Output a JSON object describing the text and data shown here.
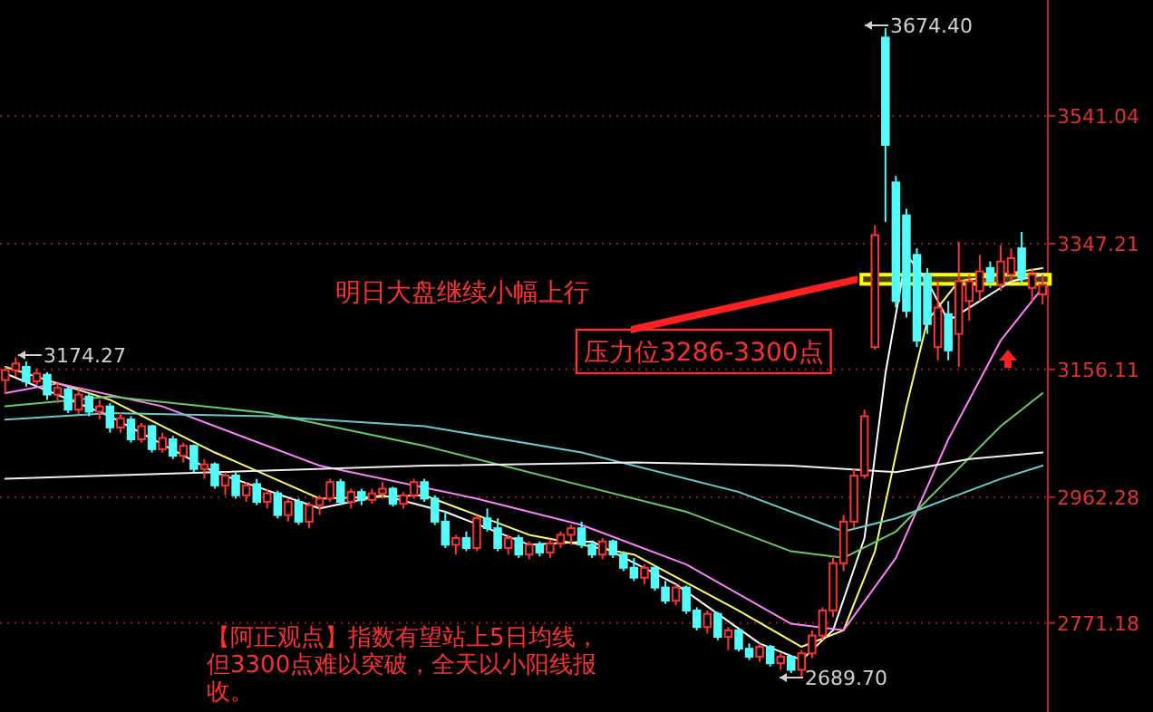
{
  "chart_data": {
    "type": "candlestick",
    "categories": [
      null,
      null,
      null,
      null,
      null,
      null,
      null,
      null,
      null,
      null,
      null,
      null,
      null,
      null,
      null,
      null,
      null,
      null,
      null,
      null,
      null,
      null,
      null,
      null,
      null,
      null,
      null,
      null,
      null,
      null,
      null,
      null,
      null,
      null,
      null,
      null,
      null,
      null,
      null,
      null,
      null,
      null,
      null,
      null,
      null,
      null,
      null,
      null,
      null,
      null,
      null,
      null,
      null,
      null,
      null,
      null,
      null,
      null,
      null,
      null,
      null,
      null,
      null,
      null,
      null,
      null,
      null,
      null,
      null,
      null,
      null,
      null,
      null,
      null,
      null,
      null,
      null,
      null,
      null,
      null,
      null,
      null,
      null,
      null,
      null,
      null,
      null,
      null,
      null,
      null,
      null,
      null,
      null,
      null,
      null,
      null,
      null,
      null,
      null,
      null
    ],
    "ohlc": [
      [
        3140,
        3160,
        3120,
        3155
      ],
      [
        3155,
        3174.27,
        3145,
        3165
      ],
      [
        3160,
        3168,
        3130,
        3138
      ],
      [
        3138,
        3158,
        3132,
        3150
      ],
      [
        3148,
        3152,
        3110,
        3118
      ],
      [
        3118,
        3135,
        3105,
        3128
      ],
      [
        3126,
        3130,
        3090,
        3095
      ],
      [
        3095,
        3125,
        3088,
        3118
      ],
      [
        3115,
        3120,
        3085,
        3092
      ],
      [
        3092,
        3110,
        3080,
        3100
      ],
      [
        3100,
        3105,
        3060,
        3068
      ],
      [
        3068,
        3090,
        3060,
        3082
      ],
      [
        3080,
        3085,
        3045,
        3050
      ],
      [
        3050,
        3075,
        3045,
        3070
      ],
      [
        3070,
        3072,
        3030,
        3035
      ],
      [
        3035,
        3060,
        3030,
        3052
      ],
      [
        3050,
        3055,
        3020,
        3025
      ],
      [
        3025,
        3045,
        3015,
        3040
      ],
      [
        3040,
        3042,
        3000,
        3005
      ],
      [
        3005,
        3020,
        2990,
        3012
      ],
      [
        3012,
        3015,
        2975,
        2980
      ],
      [
        2980,
        3000,
        2965,
        2995
      ],
      [
        2995,
        3000,
        2960,
        2965
      ],
      [
        2965,
        2985,
        2955,
        2980
      ],
      [
        2982,
        2990,
        2950,
        2955
      ],
      [
        2955,
        2975,
        2945,
        2968
      ],
      [
        2968,
        2972,
        2930,
        2935
      ],
      [
        2935,
        2960,
        2925,
        2955
      ],
      [
        2955,
        2960,
        2920,
        2925
      ],
      [
        2925,
        2955,
        2915,
        2950
      ],
      [
        2950,
        2965,
        2935,
        2960
      ],
      [
        2960,
        2990,
        2955,
        2985
      ],
      [
        2985,
        2990,
        2950,
        2955
      ],
      [
        2955,
        2975,
        2945,
        2970
      ],
      [
        2970,
        2975,
        2950,
        2958
      ],
      [
        2958,
        2975,
        2952,
        2968
      ],
      [
        2968,
        2985,
        2960,
        2975
      ],
      [
        2975,
        2978,
        2948,
        2952
      ],
      [
        2952,
        2970,
        2945,
        2965
      ],
      [
        2965,
        2990,
        2960,
        2985
      ],
      [
        2985,
        2990,
        2955,
        2960
      ],
      [
        2960,
        2965,
        2920,
        2925
      ],
      [
        2925,
        2940,
        2885,
        2890
      ],
      [
        2890,
        2905,
        2875,
        2900
      ],
      [
        2900,
        2910,
        2880,
        2885
      ],
      [
        2885,
        2935,
        2880,
        2930
      ],
      [
        2930,
        2945,
        2910,
        2915
      ],
      [
        2915,
        2930,
        2880,
        2885
      ],
      [
        2885,
        2905,
        2875,
        2900
      ],
      [
        2900,
        2905,
        2870,
        2875
      ],
      [
        2875,
        2895,
        2868,
        2890
      ],
      [
        2890,
        2895,
        2872,
        2878
      ],
      [
        2878,
        2898,
        2870,
        2892
      ],
      [
        2892,
        2910,
        2885,
        2905
      ],
      [
        2905,
        2920,
        2890,
        2915
      ],
      [
        2915,
        2925,
        2885,
        2890
      ],
      [
        2890,
        2895,
        2870,
        2875
      ],
      [
        2875,
        2900,
        2868,
        2895
      ],
      [
        2895,
        2898,
        2870,
        2875
      ],
      [
        2875,
        2880,
        2850,
        2855
      ],
      [
        2855,
        2870,
        2835,
        2840
      ],
      [
        2840,
        2860,
        2830,
        2855
      ],
      [
        2855,
        2858,
        2820,
        2825
      ],
      [
        2825,
        2835,
        2800,
        2805
      ],
      [
        2805,
        2830,
        2798,
        2825
      ],
      [
        2825,
        2828,
        2785,
        2790
      ],
      [
        2790,
        2795,
        2760,
        2765
      ],
      [
        2765,
        2790,
        2755,
        2785
      ],
      [
        2785,
        2788,
        2745,
        2750
      ],
      [
        2750,
        2765,
        2730,
        2760
      ],
      [
        2760,
        2762,
        2728,
        2732
      ],
      [
        2732,
        2740,
        2715,
        2720
      ],
      [
        2720,
        2740,
        2712,
        2735
      ],
      [
        2735,
        2738,
        2705,
        2710
      ],
      [
        2710,
        2725,
        2700,
        2720
      ],
      [
        2720,
        2722,
        2695,
        2700
      ],
      [
        2700,
        2730,
        2689.7,
        2725
      ],
      [
        2725,
        2760,
        2718,
        2752
      ],
      [
        2752,
        2795,
        2745,
        2790
      ],
      [
        2790,
        2870,
        2780,
        2862
      ],
      [
        2862,
        2935,
        2850,
        2925
      ],
      [
        2925,
        3005,
        2915,
        2995
      ],
      [
        2995,
        3095,
        2990,
        3085
      ],
      [
        3190,
        3375,
        3186,
        3360
      ],
      [
        3660,
        3674.4,
        3380,
        3497
      ],
      [
        3440,
        3450,
        3250,
        3260
      ],
      [
        3390,
        3400,
        3235,
        3245
      ],
      [
        3330,
        3340,
        3190,
        3200
      ],
      [
        3300,
        3310,
        3210,
        3225
      ],
      [
        3190,
        3290,
        3170,
        3250
      ],
      [
        3240,
        3260,
        3170,
        3185
      ],
      [
        3210,
        3350,
        3160,
        3290
      ],
      [
        3260,
        3300,
        3230,
        3290
      ],
      [
        3275,
        3330,
        3260,
        3305
      ],
      [
        3310,
        3320,
        3280,
        3290
      ],
      [
        3285,
        3345,
        3275,
        3320
      ],
      [
        3300,
        3340,
        3290,
        3325
      ],
      [
        3340,
        3365,
        3285,
        3295
      ],
      [
        3280,
        3310,
        3260,
        3300
      ],
      [
        3270,
        3300,
        3255,
        3285
      ]
    ],
    "colors": [
      "#ff3232",
      "#ff3232",
      "#54fcfc",
      "#ff3232",
      "#54fcfc",
      "#ff3232",
      "#54fcfc",
      "#ff3232",
      "#54fcfc",
      "#ff3232",
      "#54fcfc",
      "#ff3232",
      "#54fcfc",
      "#ff3232",
      "#54fcfc",
      "#ff3232",
      "#54fcfc",
      "#ff3232",
      "#54fcfc",
      "#ff3232",
      "#54fcfc",
      "#ff3232",
      "#54fcfc",
      "#ff3232",
      "#54fcfc",
      "#ff3232",
      "#54fcfc",
      "#ff3232",
      "#54fcfc",
      "#ff3232",
      "#ff3232",
      "#ff3232",
      "#54fcfc",
      "#ff3232",
      "#54fcfc",
      "#ff3232",
      "#ff3232",
      "#54fcfc",
      "#ff3232",
      "#ff3232",
      "#54fcfc",
      "#54fcfc",
      "#54fcfc",
      "#ff3232",
      "#54fcfc",
      "#ff3232",
      "#54fcfc",
      "#54fcfc",
      "#ff3232",
      "#54fcfc",
      "#ff3232",
      "#54fcfc",
      "#ff3232",
      "#ff3232",
      "#ff3232",
      "#54fcfc",
      "#54fcfc",
      "#ff3232",
      "#54fcfc",
      "#54fcfc",
      "#54fcfc",
      "#ff3232",
      "#54fcfc",
      "#54fcfc",
      "#ff3232",
      "#54fcfc",
      "#54fcfc",
      "#ff3232",
      "#54fcfc",
      "#ff3232",
      "#54fcfc",
      "#54fcfc",
      "#ff3232",
      "#54fcfc",
      "#ff3232",
      "#54fcfc",
      "#ff3232",
      "#ff3232",
      "#ff3232",
      "#ff3232",
      "#ff3232",
      "#ff3232",
      "#ff3232",
      "#ff3232",
      "#54fcfc",
      "#54fcfc",
      "#54fcfc",
      "#54fcfc",
      "#54fcfc",
      "#ff3232",
      "#54fcfc",
      "#ff3232",
      "#ff3232",
      "#ff3232",
      "#54fcfc",
      "#ff3232",
      "#ff3232",
      "#54fcfc",
      "#ff3232",
      "#ff3232"
    ],
    "series": [
      {
        "type": "line",
        "color": "#ffffff",
        "values": [
          3150,
          null,
          null,
          null,
          null,
          null,
          null,
          null,
          null,
          null,
          3085,
          null,
          null,
          null,
          null,
          null,
          null,
          null,
          null,
          null,
          3000,
          null,
          null,
          null,
          null,
          null,
          null,
          null,
          null,
          null,
          2945,
          null,
          null,
          null,
          null,
          null,
          2965,
          null,
          null,
          null,
          null,
          null,
          2940,
          null,
          null,
          null,
          null,
          null,
          null,
          null,
          2890,
          null,
          null,
          null,
          null,
          null,
          2895,
          null,
          null,
          null,
          null,
          null,
          null,
          null,
          2830,
          null,
          null,
          null,
          null,
          null,
          null,
          null,
          2740,
          null,
          null,
          null,
          2715,
          null,
          null,
          2760,
          null,
          null,
          2900,
          null,
          3150,
          null,
          3330,
          null,
          3290,
          null,
          3230,
          null,
          null,
          3260,
          null,
          null,
          3290,
          null,
          null,
          3300
        ]
      },
      {
        "type": "line",
        "color": "#ffff66",
        "values": [
          3160,
          null,
          null,
          null,
          null,
          null,
          null,
          null,
          null,
          null,
          3110,
          null,
          null,
          null,
          null,
          null,
          null,
          null,
          null,
          null,
          3030,
          null,
          null,
          null,
          null,
          null,
          null,
          null,
          null,
          null,
          2960,
          null,
          null,
          null,
          null,
          null,
          null,
          null,
          null,
          null,
          2965,
          null,
          null,
          null,
          null,
          null,
          null,
          null,
          null,
          null,
          2905,
          null,
          null,
          null,
          null,
          null,
          null,
          null,
          null,
          null,
          2875,
          null,
          null,
          null,
          null,
          null,
          null,
          null,
          null,
          null,
          2790,
          null,
          null,
          null,
          null,
          null,
          2735,
          null,
          null,
          null,
          2760,
          null,
          null,
          2880,
          null,
          null,
          3100,
          null,
          3230,
          null,
          null,
          3290,
          null,
          null,
          null,
          3300,
          null,
          null,
          null,
          3310
        ]
      },
      {
        "type": "line",
        "color": "#ff80ff",
        "values": [
          3120,
          null,
          null,
          null,
          null,
          3135,
          null,
          null,
          null,
          null,
          null,
          null,
          null,
          null,
          null,
          3100,
          null,
          null,
          null,
          null,
          null,
          null,
          null,
          null,
          null,
          null,
          null,
          null,
          null,
          null,
          3010,
          null,
          null,
          null,
          null,
          null,
          null,
          null,
          null,
          null,
          null,
          null,
          null,
          null,
          null,
          2960,
          null,
          null,
          null,
          null,
          null,
          null,
          null,
          null,
          null,
          2920,
          null,
          null,
          null,
          null,
          null,
          null,
          null,
          null,
          null,
          2860,
          null,
          null,
          null,
          null,
          null,
          null,
          null,
          null,
          null,
          2770,
          null,
          null,
          null,
          null,
          2760,
          null,
          null,
          null,
          null,
          2870,
          null,
          null,
          null,
          null,
          3050,
          null,
          null,
          null,
          null,
          3200,
          null,
          null,
          null,
          3280
        ]
      },
      {
        "type": "line",
        "color": "#66cc66",
        "values": [
          3100,
          null,
          null,
          null,
          null,
          null,
          null,
          null,
          null,
          null,
          3115,
          null,
          null,
          null,
          null,
          null,
          null,
          null,
          null,
          null,
          null,
          null,
          null,
          null,
          null,
          3090,
          null,
          null,
          null,
          null,
          null,
          null,
          null,
          null,
          null,
          null,
          null,
          null,
          null,
          null,
          3040,
          null,
          null,
          null,
          null,
          null,
          null,
          null,
          null,
          null,
          null,
          null,
          null,
          null,
          null,
          2980,
          null,
          null,
          null,
          null,
          null,
          null,
          null,
          null,
          null,
          2940,
          null,
          null,
          null,
          null,
          null,
          null,
          null,
          null,
          null,
          2880,
          null,
          null,
          null,
          null,
          2870,
          null,
          null,
          null,
          null,
          2910,
          null,
          null,
          null,
          null,
          2990,
          null,
          null,
          null,
          null,
          3070,
          null,
          null,
          null,
          3120
        ]
      },
      {
        "type": "line",
        "color": "#66cccc",
        "values": [
          3080,
          null,
          null,
          null,
          null,
          null,
          null,
          null,
          null,
          null,
          3090,
          null,
          null,
          null,
          null,
          null,
          null,
          null,
          null,
          null,
          null,
          null,
          null,
          null,
          null,
          3085,
          null,
          null,
          null,
          null,
          null,
          null,
          null,
          null,
          null,
          null,
          null,
          null,
          null,
          null,
          3070,
          null,
          null,
          null,
          null,
          null,
          null,
          null,
          null,
          null,
          null,
          null,
          null,
          null,
          null,
          3030,
          null,
          null,
          null,
          null,
          null,
          null,
          null,
          null,
          null,
          null,
          null,
          null,
          null,
          null,
          2970,
          null,
          null,
          null,
          null,
          null,
          null,
          null,
          null,
          null,
          2910,
          null,
          null,
          null,
          null,
          2930,
          null,
          null,
          null,
          null,
          2960,
          null,
          null,
          null,
          null,
          2990,
          null,
          null,
          null,
          3010
        ]
      },
      {
        "type": "line",
        "color": "#f0f0f0",
        "values": [
          2990,
          null,
          null,
          null,
          null,
          null,
          null,
          null,
          null,
          null,
          null,
          null,
          null,
          null,
          null,
          null,
          null,
          null,
          null,
          null,
          3000,
          null,
          null,
          null,
          null,
          null,
          null,
          null,
          null,
          null,
          null,
          null,
          null,
          null,
          null,
          null,
          null,
          null,
          null,
          null,
          3010,
          null,
          null,
          null,
          null,
          null,
          null,
          null,
          null,
          null,
          null,
          null,
          null,
          null,
          null,
          null,
          null,
          null,
          null,
          null,
          3015,
          null,
          null,
          null,
          null,
          null,
          null,
          null,
          null,
          null,
          null,
          null,
          null,
          null,
          null,
          3010,
          null,
          null,
          null,
          null,
          null,
          null,
          null,
          null,
          null,
          3000,
          null,
          null,
          null,
          null,
          null,
          null,
          3020,
          null,
          null,
          null,
          null,
          null,
          null,
          3030
        ]
      }
    ],
    "ylim": [
      2636,
      3717
    ],
    "yticks": [
      2771.18,
      2962.28,
      3156.11,
      3347.21,
      3541.04
    ],
    "grid": "y",
    "bands": [
      {
        "axis": "y",
        "from": 3286,
        "to": 3300,
        "label": "压力位3286-3300点",
        "color": "#ffff00"
      }
    ],
    "annotations": [
      "明日大盘继续小幅上行",
      "3674.40",
      "3174.27",
      "2689.70",
      "【阿正观点】指数有望站上5日均线，但3300点难以突破，全天以小阳线报收。"
    ]
  }
}
